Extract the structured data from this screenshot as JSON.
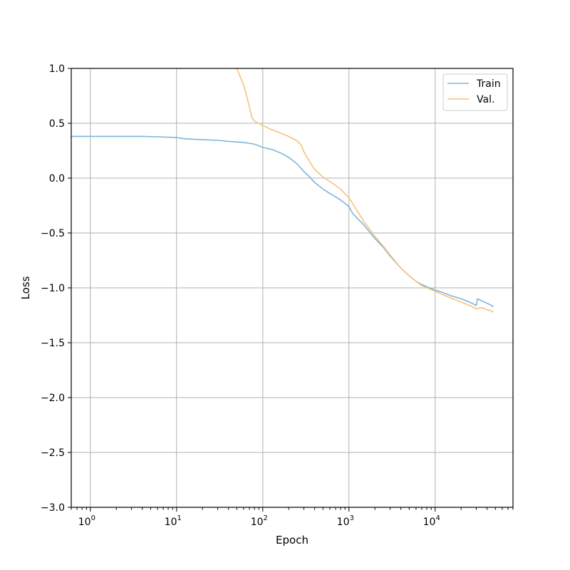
{
  "chart_data": {
    "type": "line",
    "title": "",
    "xlabel": "Epoch",
    "ylabel": "Loss",
    "xscale": "log",
    "xlim": [
      0.6,
      80000
    ],
    "ylim": [
      -3.0,
      1.0
    ],
    "grid": true,
    "legend_position": "top-right",
    "x_ticks": [
      {
        "value": 1,
        "base": "10",
        "exp": "0"
      },
      {
        "value": 10,
        "base": "10",
        "exp": "1"
      },
      {
        "value": 100,
        "base": "10",
        "exp": "2"
      },
      {
        "value": 1000,
        "base": "10",
        "exp": "3"
      },
      {
        "value": 10000,
        "base": "10",
        "exp": "4"
      }
    ],
    "y_ticks": [
      {
        "value": 1.0,
        "label": "1.0"
      },
      {
        "value": 0.5,
        "label": "0.5"
      },
      {
        "value": 0.0,
        "label": "0.0"
      },
      {
        "value": -0.5,
        "label": "−0.5"
      },
      {
        "value": -1.0,
        "label": "−1.0"
      },
      {
        "value": -1.5,
        "label": "−1.5"
      },
      {
        "value": -2.0,
        "label": "−2.0"
      },
      {
        "value": -2.5,
        "label": "−2.5"
      },
      {
        "value": -3.0,
        "label": "−3.0"
      }
    ],
    "series": [
      {
        "name": "Train",
        "color": "#7fb5da",
        "x": [
          0.6,
          1,
          2,
          4,
          7,
          10,
          12,
          15,
          20,
          30,
          40,
          60,
          80,
          100,
          130,
          160,
          200,
          250,
          300,
          350,
          400,
          500,
          600,
          700,
          800,
          900,
          1000,
          1100,
          1300,
          1500,
          2000,
          2500,
          3000,
          4000,
          5000,
          6000,
          7000,
          8000,
          10000,
          12000,
          15000,
          20000,
          25000,
          30000,
          31000,
          35000,
          40000,
          45000,
          47000
        ],
        "y": [
          0.38,
          0.38,
          0.38,
          0.38,
          0.375,
          0.37,
          0.36,
          0.355,
          0.35,
          0.345,
          0.335,
          0.325,
          0.31,
          0.28,
          0.26,
          0.23,
          0.19,
          0.13,
          0.06,
          0.01,
          -0.04,
          -0.1,
          -0.14,
          -0.17,
          -0.2,
          -0.23,
          -0.26,
          -0.32,
          -0.38,
          -0.43,
          -0.55,
          -0.63,
          -0.71,
          -0.82,
          -0.89,
          -0.94,
          -0.97,
          -0.99,
          -1.02,
          -1.04,
          -1.07,
          -1.1,
          -1.13,
          -1.16,
          -1.1,
          -1.12,
          -1.14,
          -1.16,
          -1.17
        ]
      },
      {
        "name": "Val.",
        "color": "#f5c27e",
        "x": [
          50,
          55,
          60,
          65,
          70,
          75,
          80,
          100,
          120,
          150,
          200,
          250,
          280,
          300,
          350,
          400,
          500,
          600,
          800,
          1000,
          1300,
          1500,
          2000,
          2500,
          3000,
          4000,
          5000,
          6000,
          7000,
          8000,
          10000,
          12000,
          15000,
          20000,
          25000,
          30000,
          35000,
          40000,
          45000,
          47000
        ],
        "y": [
          1.0,
          0.92,
          0.85,
          0.75,
          0.65,
          0.55,
          0.52,
          0.48,
          0.45,
          0.42,
          0.38,
          0.34,
          0.3,
          0.24,
          0.15,
          0.08,
          0.01,
          -0.03,
          -0.1,
          -0.18,
          -0.32,
          -0.4,
          -0.53,
          -0.62,
          -0.7,
          -0.82,
          -0.89,
          -0.94,
          -0.98,
          -1.0,
          -1.03,
          -1.06,
          -1.09,
          -1.13,
          -1.16,
          -1.19,
          -1.18,
          -1.2,
          -1.21,
          -1.22
        ]
      }
    ]
  }
}
